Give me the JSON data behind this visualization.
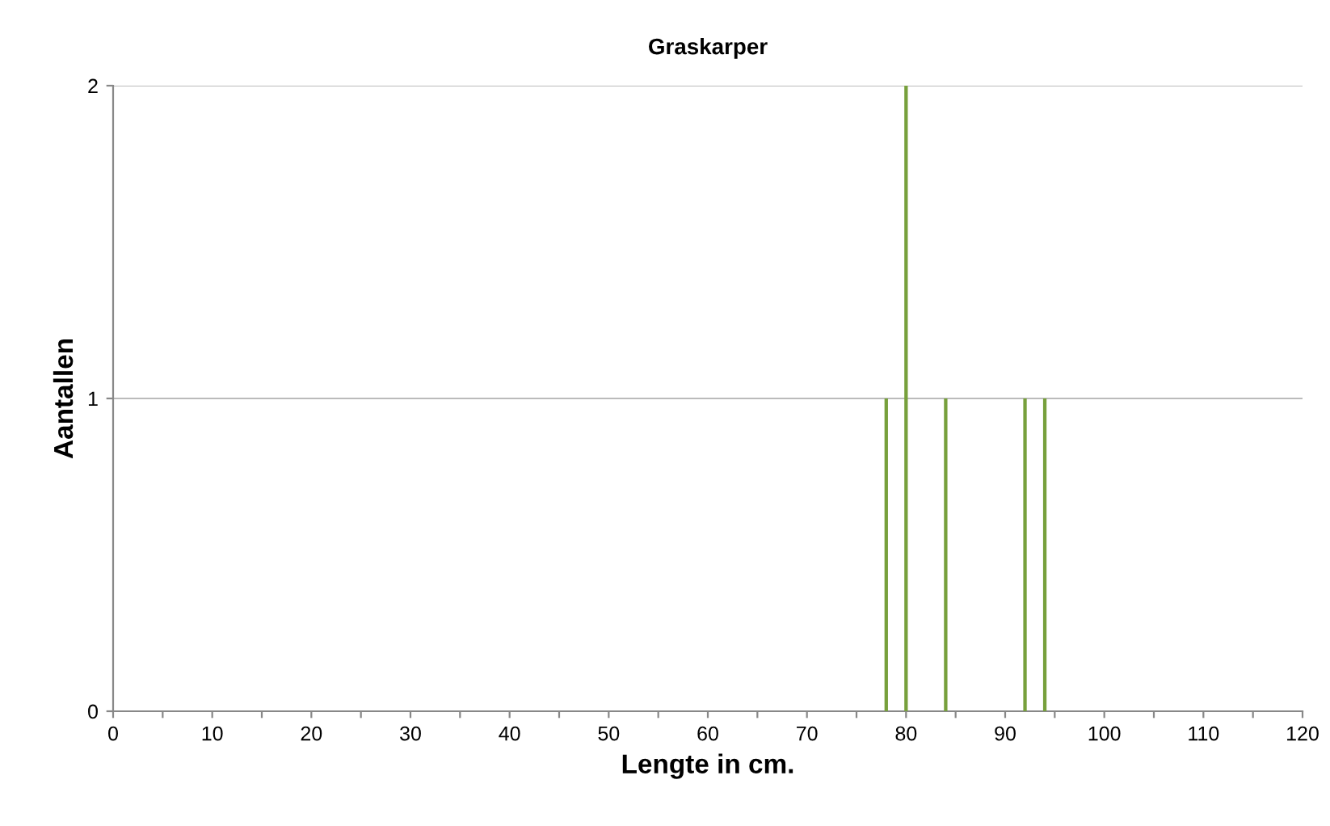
{
  "chart_data": {
    "type": "bar",
    "title": "Graskarper",
    "xlabel": "Lengte in cm.",
    "ylabel": "Aantallen",
    "x": [
      78,
      80,
      84,
      92,
      94
    ],
    "series": [
      {
        "color": "#77a03c",
        "values": [
          1,
          2,
          1,
          1,
          1
        ]
      }
    ],
    "xlim": [
      0,
      120
    ],
    "xticks": [
      0,
      {
        "value": 5,
        "label": null
      },
      10,
      {
        "value": 15,
        "label": null
      },
      20,
      {
        "value": 25,
        "label": null
      },
      30,
      {
        "value": 35,
        "label": null
      },
      40,
      {
        "value": 45,
        "label": null
      },
      50,
      {
        "value": 55,
        "label": null
      },
      60,
      {
        "value": 65,
        "label": null
      },
      70,
      {
        "value": 75,
        "label": null
      },
      80,
      {
        "value": 85,
        "label": null
      },
      90,
      {
        "value": 95,
        "label": null
      },
      100,
      {
        "value": 105,
        "label": null
      },
      110,
      {
        "value": 115,
        "label": null
      },
      120
    ],
    "ylim": [
      0,
      2
    ],
    "yticks": [
      0,
      1,
      2
    ],
    "grid": "y",
    "legend": false
  }
}
